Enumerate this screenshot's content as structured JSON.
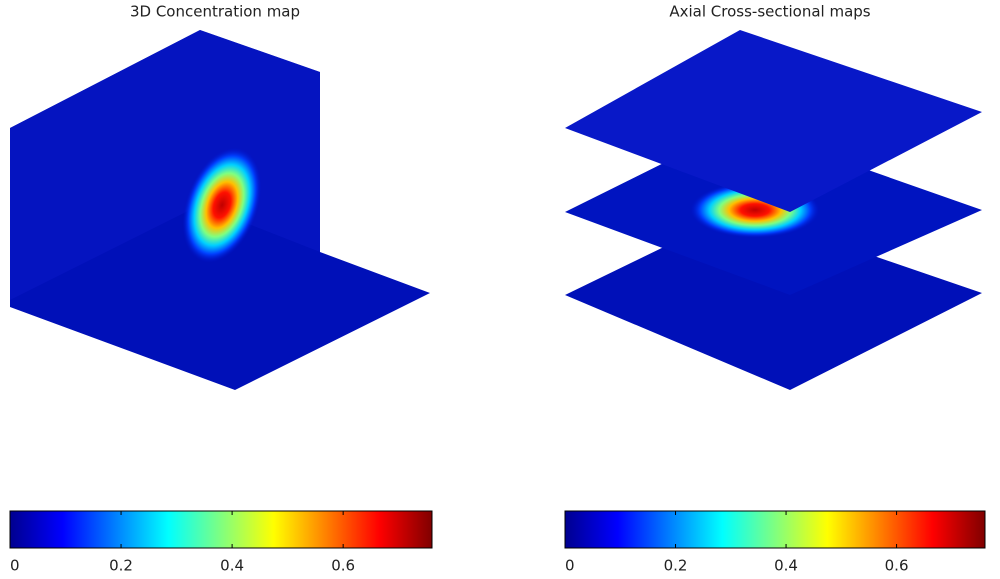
{
  "chart_data": [
    {
      "type": "heatmap",
      "title": "3D Concentration map",
      "colormap": "jet",
      "clim": [
        0,
        0.76
      ],
      "cticks": [
        0,
        0.2,
        0.4,
        0.6
      ]
    },
    {
      "type": "heatmap",
      "title": "Axial Cross-sectional maps",
      "colormap": "jet",
      "clim": [
        0,
        0.76
      ],
      "cticks": [
        0,
        0.2,
        0.4,
        0.6
      ]
    }
  ]
}
